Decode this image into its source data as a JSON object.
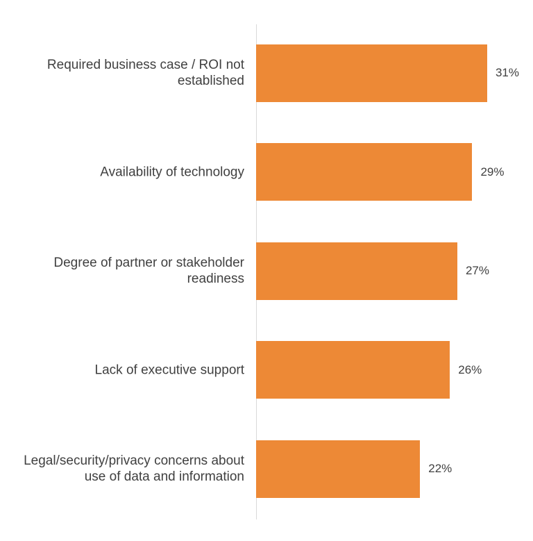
{
  "chart_data": {
    "type": "bar",
    "orientation": "horizontal",
    "color": "#ed8936",
    "categories": [
      "Required business case / ROI not established",
      "Availability of technology",
      "Degree of partner or stakeholder readiness",
      "Lack of executive support",
      "Legal/security/privacy concerns about use of data and information"
    ],
    "values": [
      31,
      29,
      27,
      26,
      22
    ],
    "value_labels": [
      "31%",
      "29%",
      "27%",
      "26%",
      "22%"
    ]
  }
}
